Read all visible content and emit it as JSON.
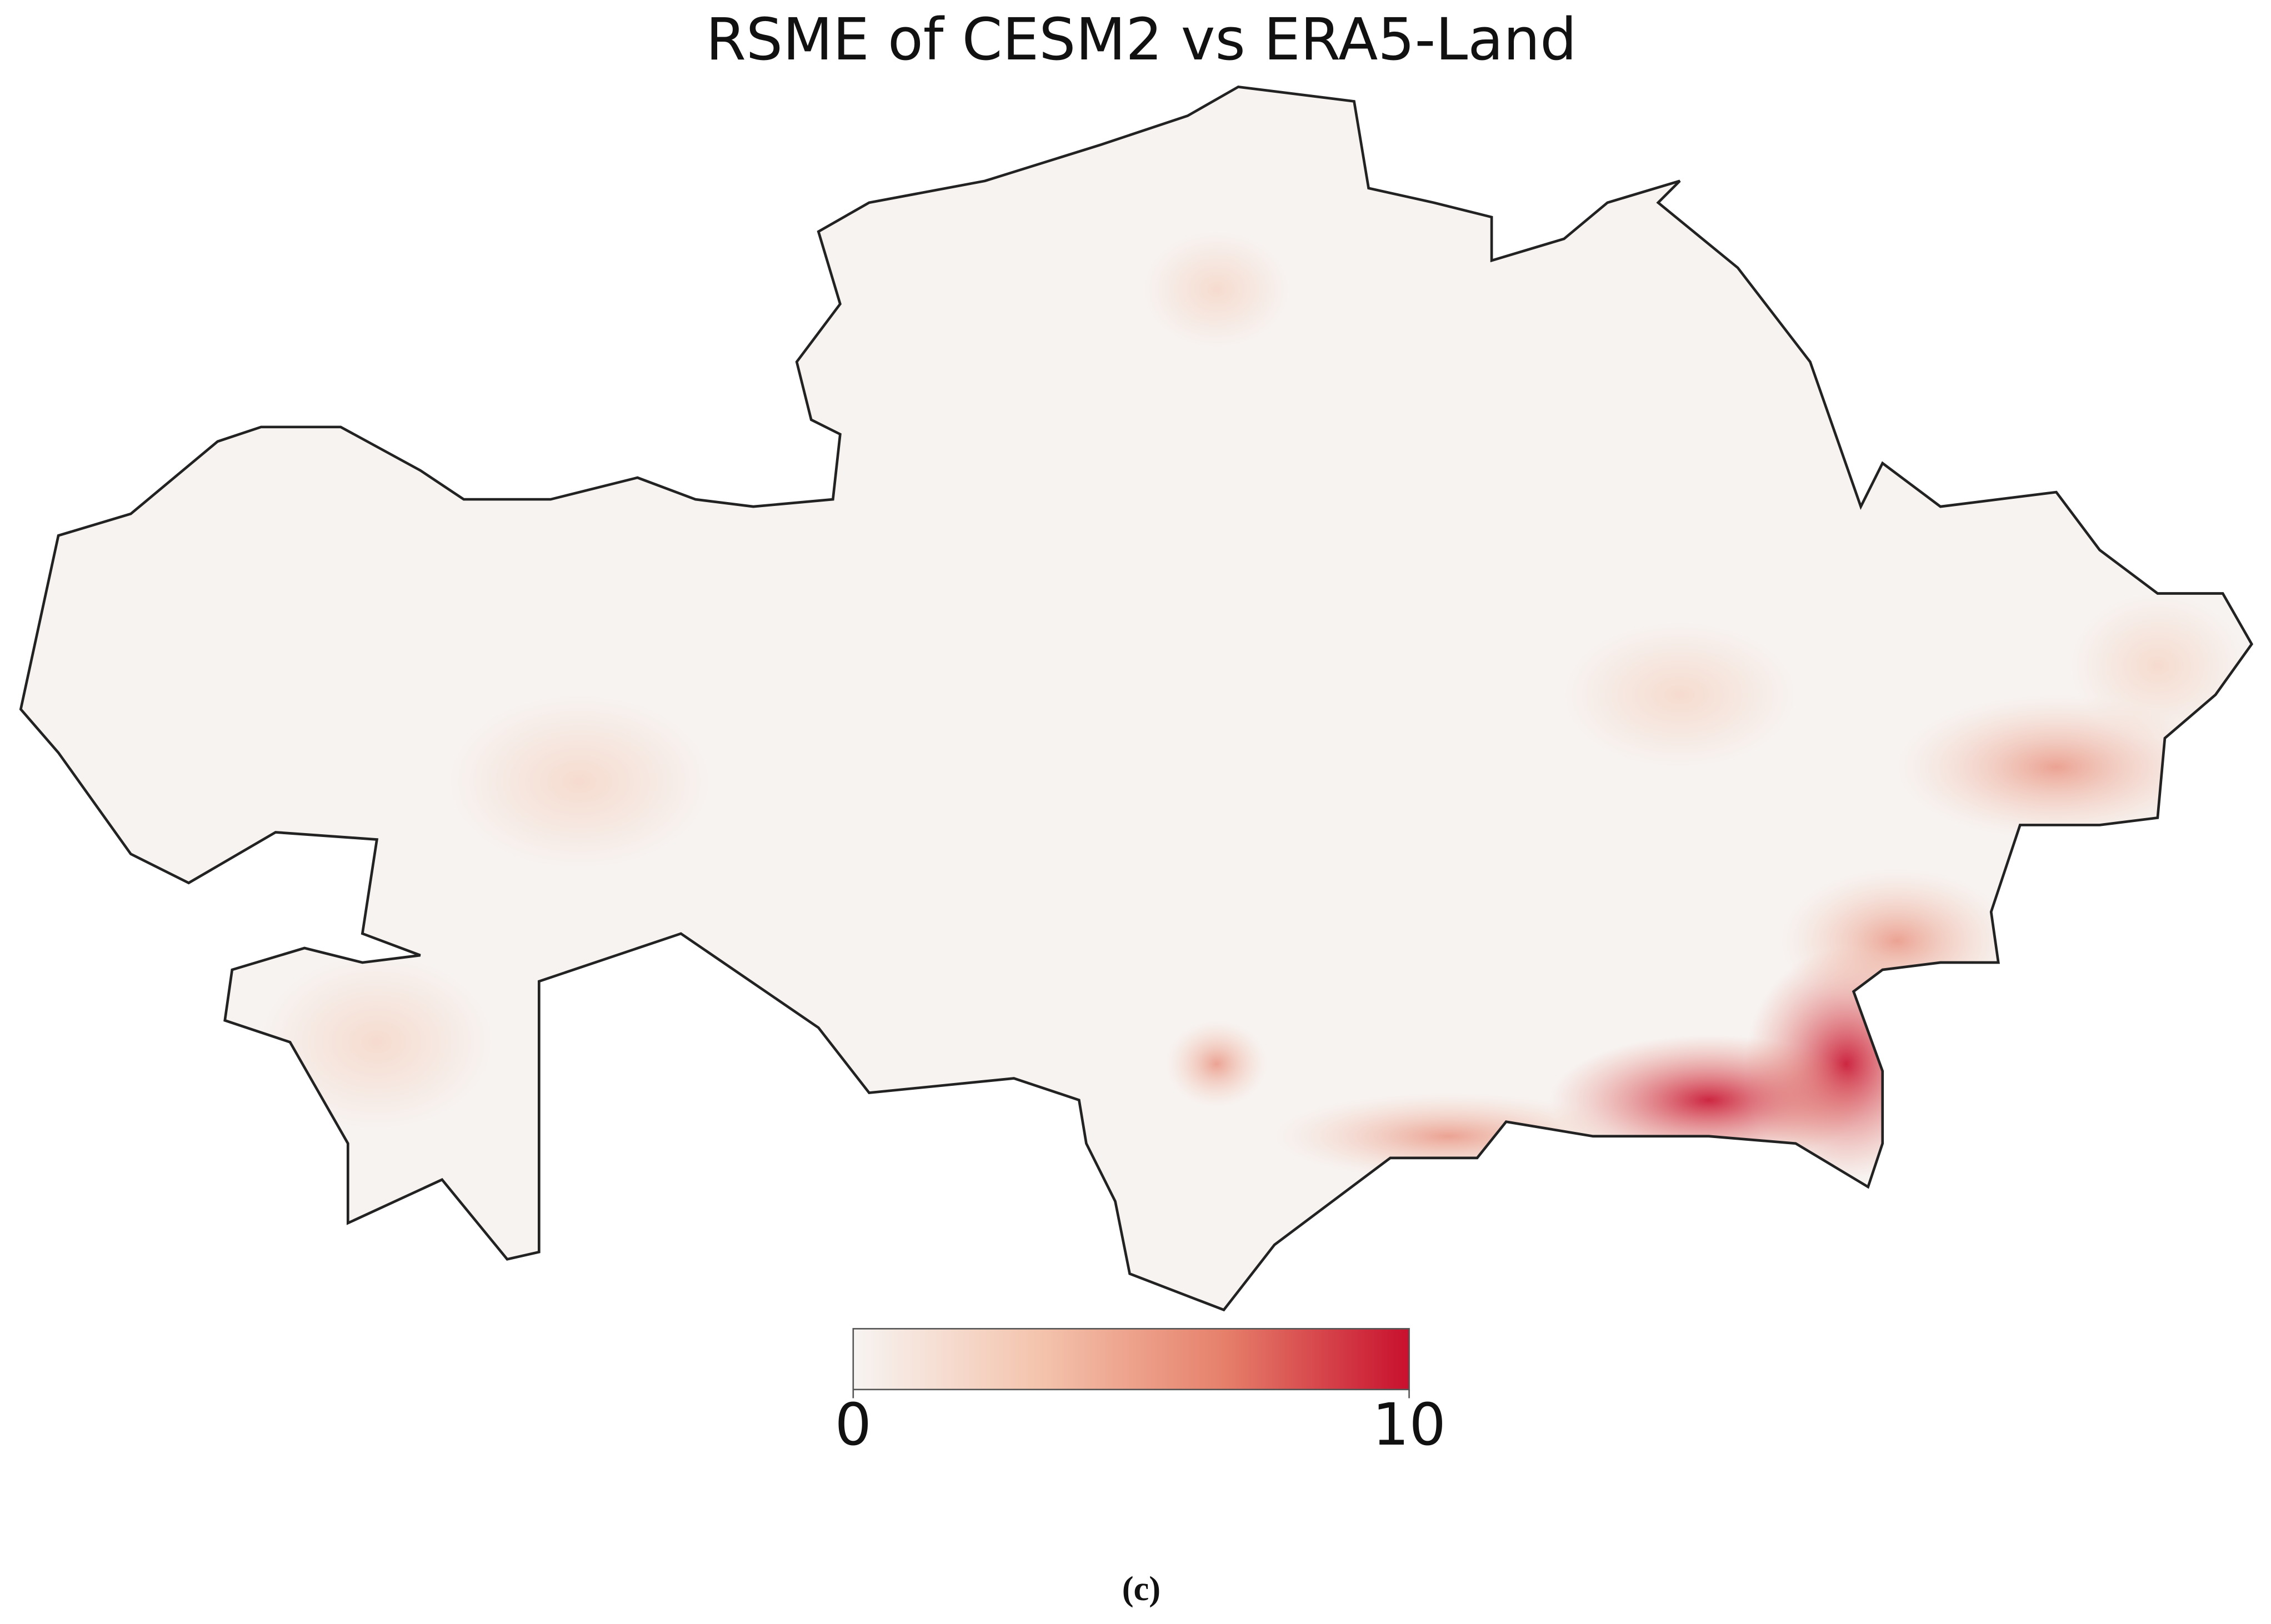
{
  "title": "RSME of CESM2 vs ERA5-Land",
  "colorbar": {
    "lim": [
      0,
      10
    ],
    "ticks": [
      0,
      10
    ],
    "colors": [
      "#f7f4f2",
      "#f4c4ad",
      "#e6806b",
      "#c8102e"
    ]
  },
  "caption": "(c)"
}
